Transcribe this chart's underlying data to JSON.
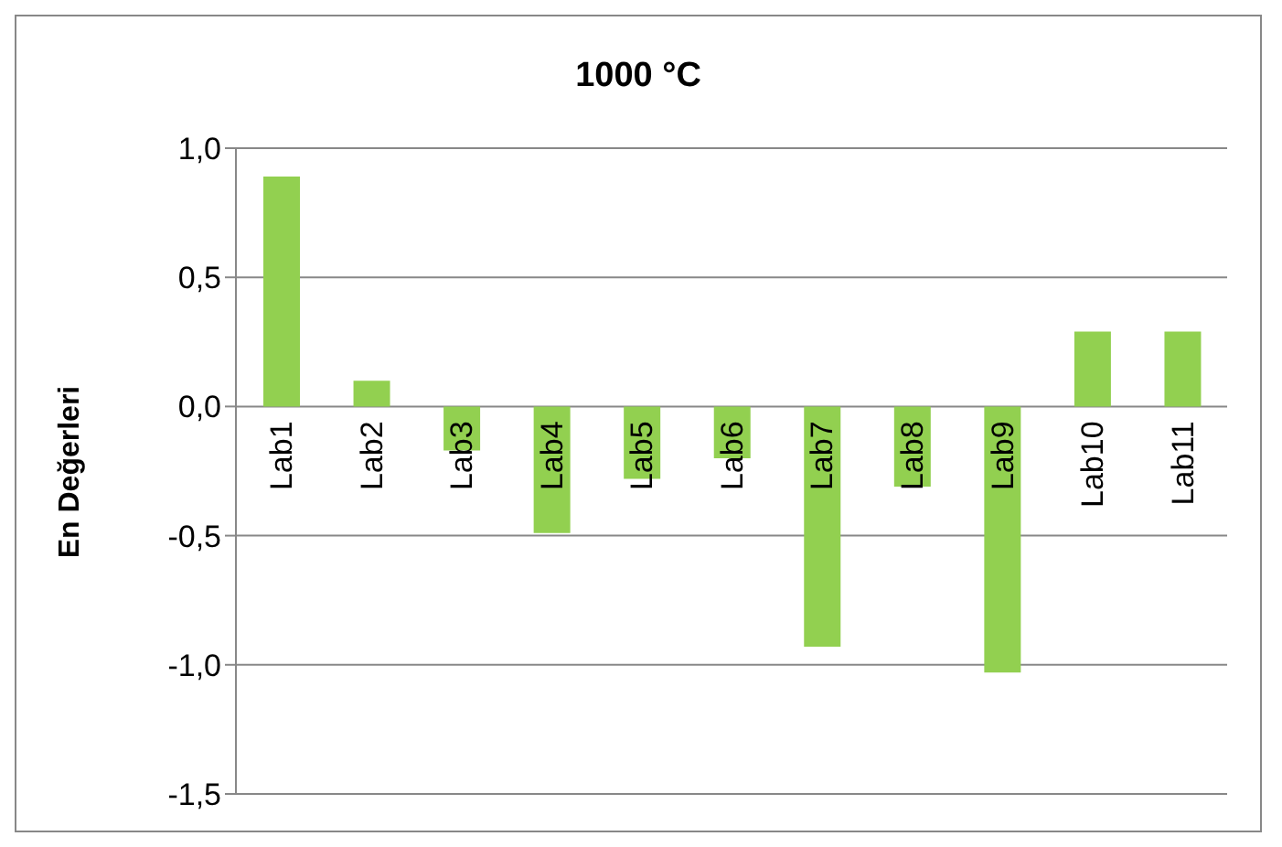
{
  "chart_data": {
    "type": "bar",
    "title": "1000 °C",
    "ylabel": "En Değerleri",
    "categories": [
      "Lab1",
      "Lab2",
      "Lab3",
      "Lab4",
      "Lab5",
      "Lab6",
      "Lab7",
      "Lab8",
      "Lab9",
      "Lab10",
      "Lab11"
    ],
    "values": [
      0.89,
      0.1,
      -0.17,
      -0.49,
      -0.28,
      -0.2,
      -0.93,
      -0.31,
      -1.03,
      0.29,
      0.29
    ],
    "color": "#92d050",
    "ylim": [
      -1.5,
      1.0
    ],
    "yticks": [
      {
        "value": -1.5,
        "label": "-1,5"
      },
      {
        "value": -1.0,
        "label": "-1,0"
      },
      {
        "value": -0.5,
        "label": "-0,5"
      },
      {
        "value": 0,
        "label": "0,0"
      },
      {
        "value": 0.5,
        "label": "0,5"
      },
      {
        "value": 1.0,
        "label": "1,0"
      }
    ],
    "grid": "y"
  }
}
